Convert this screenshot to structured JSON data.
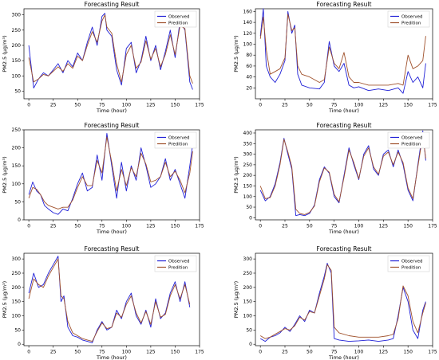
{
  "colors": {
    "observed": "#1f1fd6",
    "prediction": "#a0522d",
    "axis": "#000000"
  },
  "chart_data": [
    {
      "type": "line",
      "title": "Forecasting Result",
      "xlabel": "Time (hour)",
      "ylabel": "PM2.5 (μg/m³)",
      "xlim": [
        -5,
        175
      ],
      "ylim": [
        25,
        320
      ],
      "xticks": [
        0,
        25,
        50,
        75,
        100,
        125,
        150,
        175
      ],
      "yticks": [
        50,
        100,
        150,
        200,
        250,
        300
      ],
      "legend_position": "top-right",
      "x": [
        0,
        5,
        10,
        15,
        20,
        25,
        30,
        35,
        40,
        45,
        50,
        55,
        60,
        65,
        70,
        75,
        78,
        80,
        85,
        90,
        95,
        100,
        105,
        110,
        115,
        120,
        125,
        130,
        135,
        140,
        145,
        150,
        155,
        160,
        165,
        168
      ],
      "series": [
        {
          "name": "Observed",
          "values": [
            200,
            60,
            90,
            110,
            100,
            120,
            140,
            110,
            150,
            130,
            175,
            150,
            210,
            260,
            200,
            295,
            305,
            250,
            230,
            120,
            70,
            190,
            210,
            110,
            150,
            230,
            150,
            200,
            120,
            180,
            250,
            160,
            280,
            250,
            80,
            55
          ]
        },
        {
          "name": "Predition",
          "values": [
            160,
            80,
            90,
            105,
            100,
            115,
            130,
            115,
            140,
            125,
            165,
            150,
            200,
            245,
            210,
            280,
            300,
            260,
            240,
            140,
            80,
            170,
            200,
            125,
            145,
            215,
            155,
            190,
            130,
            170,
            235,
            170,
            265,
            255,
            100,
            75
          ]
        }
      ]
    },
    {
      "type": "line",
      "title": "Forecasting Result",
      "xlabel": "Time (hour)",
      "ylabel": "PM2.5 (μg/m³)",
      "xlim": [
        -5,
        175
      ],
      "ylim": [
        0,
        165
      ],
      "xticks": [
        0,
        25,
        50,
        75,
        100,
        125,
        150,
        175
      ],
      "yticks": [
        20,
        40,
        60,
        80,
        100,
        120,
        140,
        160
      ],
      "legend_position": "top-right",
      "x": [
        0,
        3,
        6,
        10,
        15,
        20,
        25,
        28,
        32,
        35,
        38,
        42,
        50,
        60,
        65,
        70,
        75,
        80,
        85,
        90,
        95,
        100,
        110,
        120,
        130,
        140,
        145,
        150,
        155,
        160,
        165,
        168
      ],
      "series": [
        {
          "name": "Observed",
          "values": [
            115,
            165,
            60,
            40,
            30,
            45,
            70,
            160,
            120,
            135,
            45,
            25,
            20,
            18,
            30,
            105,
            60,
            50,
            65,
            25,
            20,
            22,
            15,
            18,
            15,
            20,
            10,
            50,
            30,
            40,
            20,
            65
          ]
        },
        {
          "name": "Predition",
          "values": [
            110,
            150,
            90,
            45,
            50,
            55,
            75,
            155,
            125,
            130,
            60,
            45,
            40,
            30,
            35,
            95,
            65,
            55,
            85,
            40,
            30,
            30,
            25,
            25,
            25,
            28,
            25,
            80,
            55,
            60,
            70,
            115
          ]
        }
      ]
    },
    {
      "type": "line",
      "title": "Forecasting Result",
      "xlabel": "Time (hour)",
      "ylabel": "PM2.5 (μg/m³)",
      "xlim": [
        -5,
        175
      ],
      "ylim": [
        0,
        250
      ],
      "xticks": [
        0,
        25,
        50,
        75,
        100,
        125,
        150,
        175
      ],
      "yticks": [
        0,
        50,
        100,
        150,
        200,
        250
      ],
      "legend_position": "top-right",
      "x": [
        0,
        4,
        8,
        12,
        16,
        20,
        25,
        30,
        35,
        40,
        45,
        50,
        55,
        60,
        65,
        70,
        75,
        80,
        85,
        90,
        95,
        100,
        105,
        110,
        115,
        120,
        125,
        130,
        135,
        140,
        145,
        150,
        155,
        160,
        165,
        168
      ],
      "series": [
        {
          "name": "Observed",
          "values": [
            70,
            105,
            80,
            70,
            40,
            30,
            20,
            15,
            30,
            25,
            60,
            100,
            130,
            80,
            90,
            180,
            110,
            240,
            150,
            60,
            160,
            80,
            150,
            110,
            200,
            150,
            90,
            100,
            120,
            170,
            110,
            140,
            100,
            60,
            150,
            210
          ]
        },
        {
          "name": "Predition",
          "values": [
            60,
            90,
            85,
            70,
            50,
            40,
            35,
            30,
            35,
            35,
            55,
            90,
            120,
            95,
            95,
            165,
            130,
            230,
            160,
            80,
            140,
            95,
            145,
            120,
            185,
            155,
            105,
            110,
            120,
            160,
            120,
            135,
            110,
            75,
            130,
            190
          ]
        }
      ]
    },
    {
      "type": "line",
      "title": "Forecasting Result",
      "xlabel": "Time (hour)",
      "ylabel": "PM2.5 (μg/m³)",
      "xlim": [
        -5,
        175
      ],
      "ylim": [
        -10,
        415
      ],
      "xticks": [
        0,
        25,
        50,
        75,
        100,
        125,
        150,
        175
      ],
      "yticks": [
        0,
        50,
        100,
        150,
        200,
        250,
        300,
        350,
        400
      ],
      "legend_position": "top-right",
      "x": [
        0,
        5,
        10,
        15,
        20,
        24,
        28,
        32,
        36,
        40,
        45,
        50,
        55,
        60,
        65,
        70,
        75,
        80,
        85,
        90,
        95,
        100,
        105,
        110,
        115,
        120,
        125,
        130,
        135,
        140,
        145,
        150,
        155,
        160,
        165,
        168
      ],
      "series": [
        {
          "name": "Observed",
          "values": [
            130,
            80,
            100,
            160,
            260,
            375,
            300,
            230,
            10,
            15,
            10,
            20,
            60,
            180,
            240,
            210,
            100,
            70,
            200,
            330,
            250,
            180,
            300,
            340,
            230,
            200,
            300,
            320,
            240,
            320,
            250,
            130,
            80,
            250,
            410,
            270
          ]
        },
        {
          "name": "Predition",
          "values": [
            150,
            90,
            95,
            150,
            250,
            370,
            310,
            240,
            40,
            20,
            15,
            25,
            55,
            170,
            235,
            215,
            110,
            75,
            190,
            320,
            260,
            185,
            290,
            330,
            240,
            205,
            290,
            310,
            250,
            310,
            260,
            140,
            90,
            240,
            390,
            280
          ]
        }
      ]
    },
    {
      "type": "line",
      "title": "Forecasting Result",
      "xlabel": "Time (hour)",
      "ylabel": "PM2.5 (μg/m³)",
      "xlim": [
        -5,
        175
      ],
      "ylim": [
        -5,
        320
      ],
      "xticks": [
        0,
        25,
        50,
        75,
        100,
        125,
        150,
        175
      ],
      "yticks": [
        0,
        50,
        100,
        150,
        200,
        250,
        300
      ],
      "legend_position": "top-right",
      "x": [
        0,
        5,
        10,
        15,
        20,
        25,
        30,
        33,
        36,
        40,
        45,
        50,
        55,
        60,
        65,
        70,
        75,
        80,
        85,
        90,
        95,
        100,
        105,
        110,
        115,
        120,
        125,
        130,
        135,
        140,
        145,
        150,
        155,
        160,
        165
      ],
      "series": [
        {
          "name": "Observed",
          "values": [
            180,
            250,
            200,
            210,
            250,
            280,
            310,
            150,
            170,
            60,
            30,
            25,
            15,
            10,
            5,
            50,
            80,
            50,
            60,
            120,
            90,
            150,
            180,
            100,
            70,
            120,
            60,
            160,
            90,
            110,
            180,
            220,
            150,
            220,
            130
          ]
        },
        {
          "name": "Predition",
          "values": [
            160,
            230,
            210,
            200,
            240,
            270,
            300,
            170,
            160,
            80,
            40,
            30,
            20,
            15,
            10,
            45,
            75,
            55,
            60,
            110,
            95,
            140,
            170,
            110,
            75,
            115,
            70,
            150,
            95,
            105,
            170,
            210,
            160,
            210,
            140
          ]
        }
      ]
    },
    {
      "type": "line",
      "title": "Forecasting Result",
      "xlabel": "Time (hour)",
      "ylabel": "PM2.5 (μg/m³)",
      "xlim": [
        -5,
        175
      ],
      "ylim": [
        -5,
        320
      ],
      "xticks": [
        0,
        25,
        50,
        75,
        100,
        125,
        150,
        175
      ],
      "yticks": [
        0,
        50,
        100,
        150,
        200,
        250,
        300
      ],
      "legend_position": "top-right",
      "x": [
        0,
        5,
        10,
        15,
        20,
        25,
        30,
        35,
        40,
        45,
        50,
        55,
        60,
        65,
        68,
        72,
        75,
        80,
        90,
        100,
        110,
        120,
        130,
        135,
        140,
        145,
        150,
        155,
        160,
        165,
        168
      ],
      "series": [
        {
          "name": "Observed",
          "values": [
            20,
            10,
            25,
            30,
            40,
            60,
            45,
            70,
            100,
            80,
            120,
            110,
            180,
            240,
            285,
            250,
            20,
            15,
            10,
            12,
            15,
            10,
            15,
            20,
            100,
            200,
            150,
            50,
            20,
            120,
            150
          ]
        },
        {
          "name": "Predition",
          "values": [
            30,
            20,
            25,
            35,
            45,
            55,
            50,
            65,
            95,
            85,
            115,
            110,
            170,
            230,
            280,
            260,
            60,
            40,
            30,
            25,
            25,
            25,
            30,
            35,
            90,
            205,
            170,
            80,
            40,
            110,
            145
          ]
        }
      ]
    }
  ]
}
